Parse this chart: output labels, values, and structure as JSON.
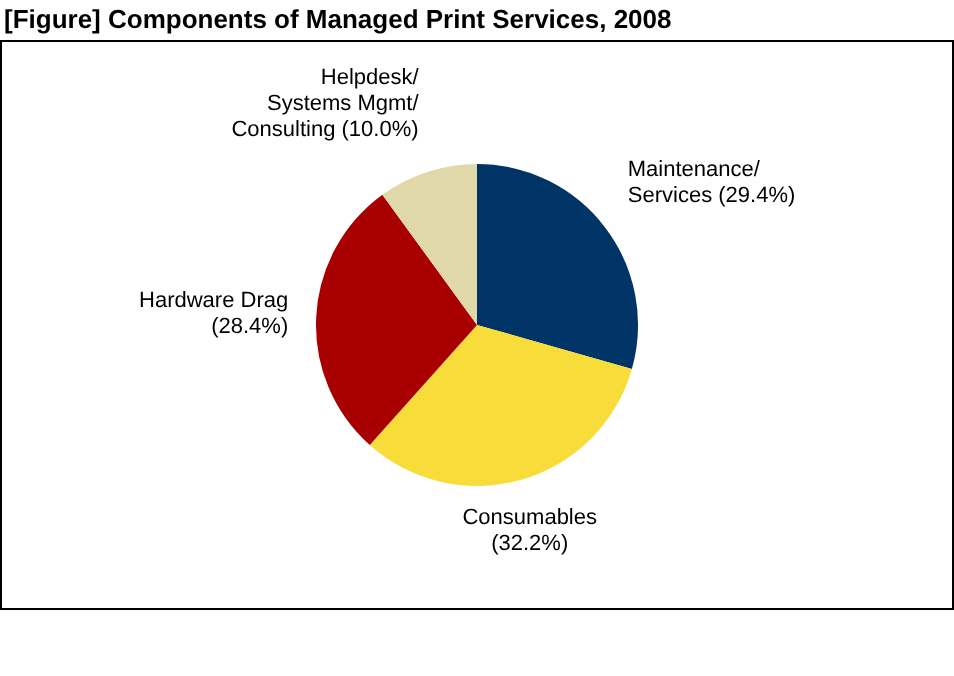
{
  "chart_data": {
    "type": "pie",
    "title": "[Figure] Components of Managed Print Services, 2008",
    "categories": [
      "Maintenance/\nServices",
      "Consumables",
      "Hardware Drag",
      "Helpdesk/\nSystems Mgmt/\nConsulting"
    ],
    "values": [
      29.4,
      32.2,
      28.4,
      10.0
    ],
    "colors": [
      "#003366",
      "#f8dc3a",
      "#a80000",
      "#e0d8a8"
    ],
    "value_labels": [
      "(29.4%)",
      "(32.2%)",
      "(28.4%)",
      "(10.0%)"
    ],
    "legend": false
  }
}
